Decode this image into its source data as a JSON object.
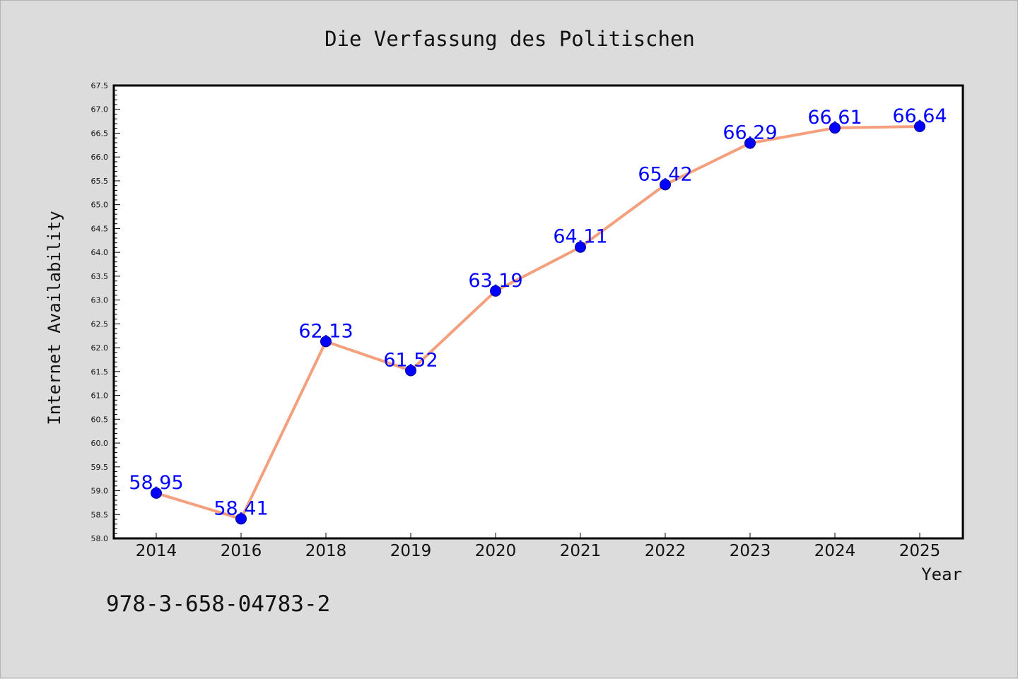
{
  "chart_data": {
    "type": "line",
    "title": "Die Verfassung des Politischen",
    "xlabel": "Year",
    "ylabel": "Internet Availability",
    "categories": [
      "2014",
      "2016",
      "2018",
      "2019",
      "2020",
      "2021",
      "2022",
      "2023",
      "2024",
      "2025"
    ],
    "values": [
      58.95,
      58.41,
      62.13,
      61.52,
      63.19,
      64.11,
      65.42,
      66.29,
      66.61,
      66.64
    ],
    "value_labels": [
      "58.95",
      "58.41",
      "62.13",
      "61.52",
      "63.19",
      "64.11",
      "65.42",
      "66.29",
      "66.61",
      "66.64"
    ],
    "ylim": [
      58.0,
      67.5
    ],
    "y_major_step": 0.5,
    "y_tick_labels": [
      "58.0",
      "58.5",
      "59.0",
      "59.5",
      "60.0",
      "60.5",
      "61.0",
      "61.5",
      "62.0",
      "62.5",
      "63.0",
      "63.5",
      "64.0",
      "64.5",
      "65.0",
      "65.5",
      "66.0",
      "66.5",
      "67.0",
      "67.5"
    ],
    "grid": false,
    "legend": "none",
    "line_color": "#f4a07e",
    "marker_color": "#0000ff",
    "label_color": "#0000ff"
  },
  "annotation": {
    "isbn": "978-3-658-04783-2"
  }
}
